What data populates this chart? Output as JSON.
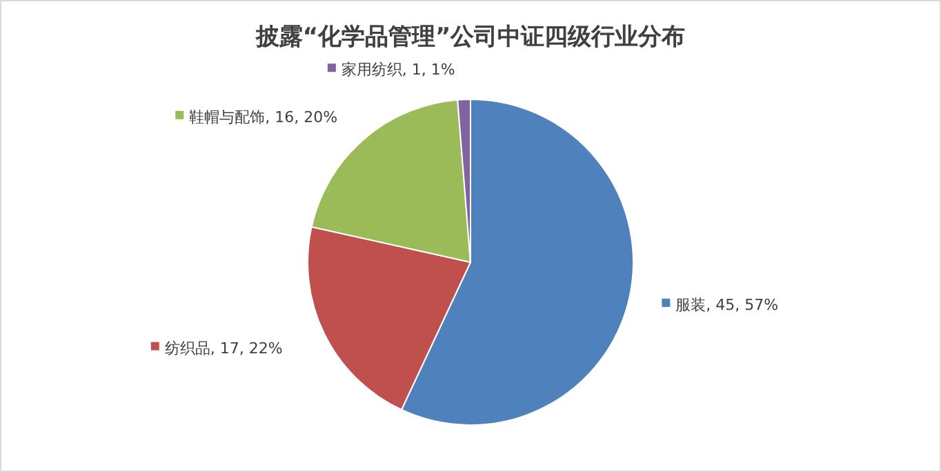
{
  "chart_data": {
    "type": "pie",
    "title": "披露“化学品管理”公司中证四级行业分布",
    "categories": [
      "服装",
      "纺织品",
      "鞋帽与配饰",
      "家用纺织"
    ],
    "values": [
      45,
      17,
      16,
      1
    ],
    "value_labels": [
      "45, 57%",
      "17, 22%",
      "16, 20%",
      "1, 1%"
    ],
    "colors": [
      "#4f81bd",
      "#c0504d",
      "#9bbb59",
      "#8064a2"
    ],
    "legend": true
  }
}
